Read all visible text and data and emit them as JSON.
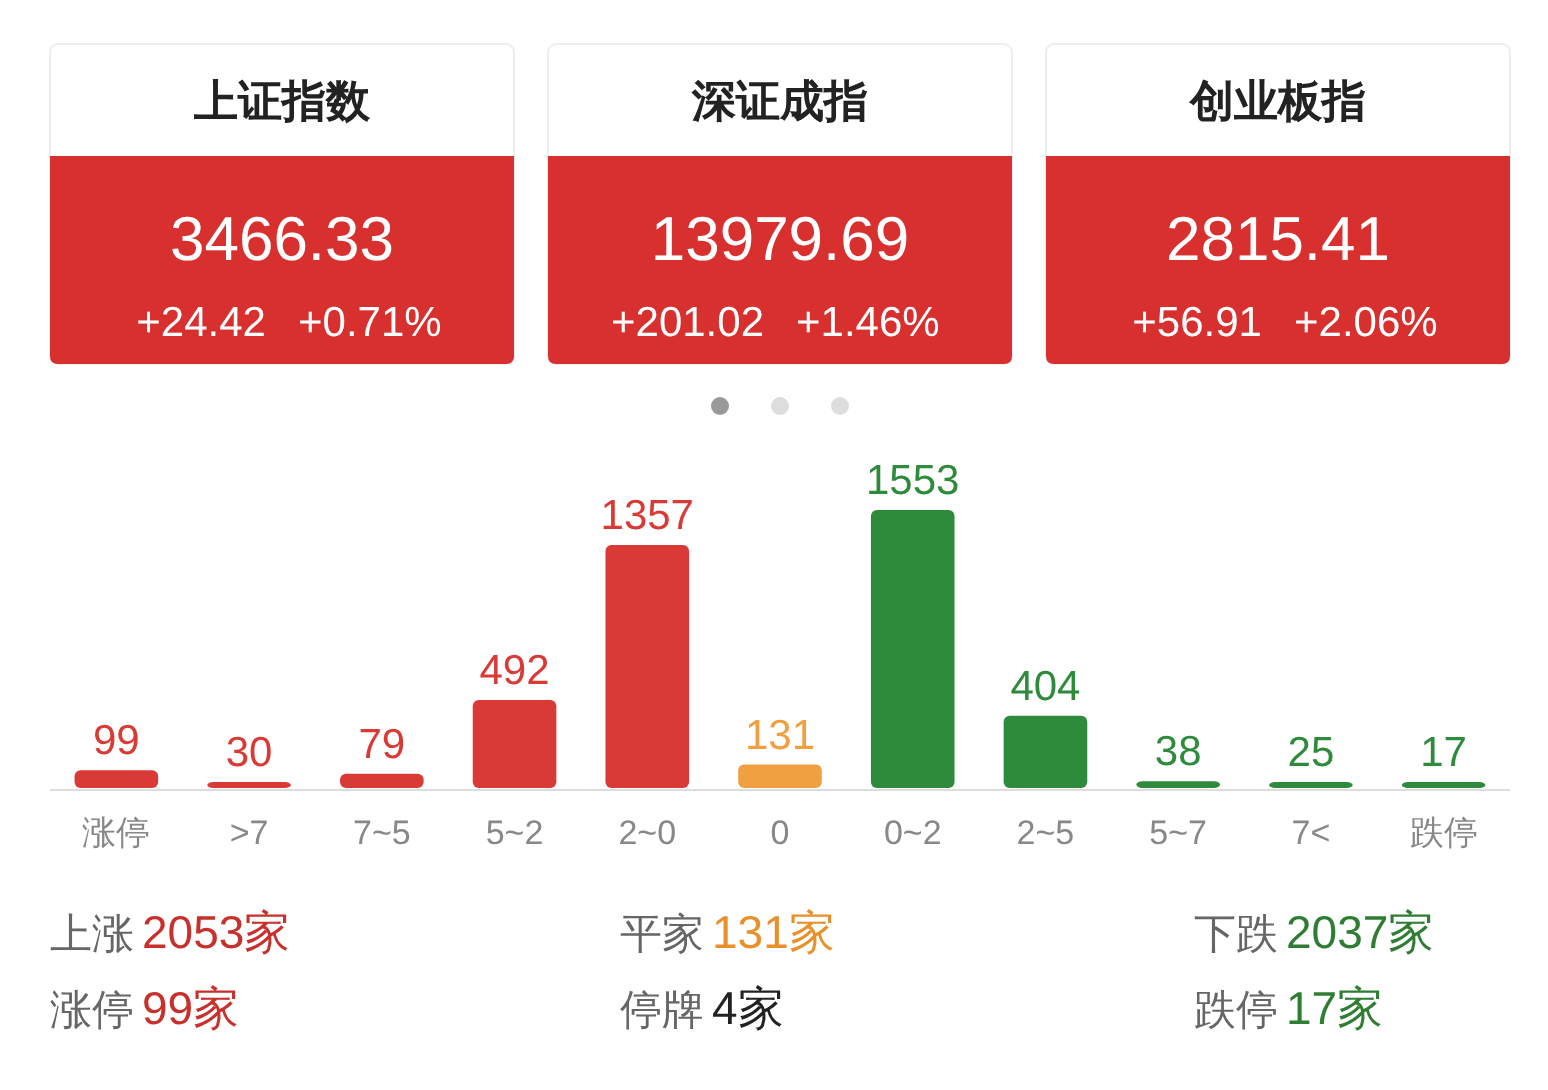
{
  "chart_data": [
    {
      "type": "other",
      "title": "上证指数",
      "annotations": [
        "3466.33",
        "+24.42",
        "+0.71%"
      ]
    },
    {
      "type": "other",
      "title": "深证成指",
      "annotations": [
        "13979.69",
        "+201.02",
        "+1.46%"
      ]
    },
    {
      "type": "other",
      "title": "创业板指",
      "annotations": [
        "2815.41",
        "+56.91",
        "+2.06%"
      ]
    },
    {
      "type": "bar",
      "categories": [
        "涨停",
        ">7",
        "7~5",
        "5~2",
        "2~0",
        "0",
        "0~2",
        "2~5",
        "5~7",
        "7<",
        "跌停"
      ],
      "values": [
        99,
        30,
        79,
        492,
        1357,
        131,
        1553,
        404,
        38,
        25,
        17
      ],
      "colors": [
        "#d93a36",
        "#d93a36",
        "#d93a36",
        "#d93a36",
        "#d93a36",
        "#f0a040",
        "#2e8b3c",
        "#2e8b3c",
        "#2e8b3c",
        "#2e8b3c",
        "#2e8b3c"
      ],
      "data_labels": true,
      "annotations": [
        "上涨",
        "2053家",
        "平家",
        "131家",
        "下跌",
        "2037家",
        "涨停",
        "99家",
        "停牌",
        "4家",
        "跌停",
        "17家"
      ]
    }
  ]
}
